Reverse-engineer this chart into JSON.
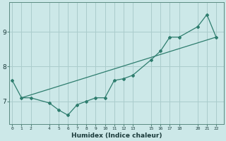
{
  "xlabel": "Humidex (Indice chaleur)",
  "ylabel": "",
  "bg_color": "#cce8e8",
  "line_color": "#2e7d6e",
  "grid_color": "#aacccc",
  "data_x": [
    0,
    1,
    2,
    4,
    5,
    6,
    7,
    8,
    9,
    10,
    11,
    12,
    13,
    15,
    16,
    17,
    18,
    20,
    21,
    22
  ],
  "data_y": [
    7.6,
    7.1,
    7.1,
    6.95,
    6.75,
    6.6,
    6.9,
    7.0,
    7.1,
    7.1,
    7.6,
    7.65,
    7.75,
    8.2,
    8.45,
    8.85,
    8.85,
    9.15,
    9.5,
    8.85
  ],
  "trend_x": [
    1,
    22
  ],
  "trend_y": [
    7.1,
    8.85
  ],
  "xticks": [
    0,
    1,
    2,
    4,
    5,
    6,
    7,
    8,
    9,
    10,
    11,
    12,
    13,
    15,
    16,
    17,
    18,
    20,
    21,
    22
  ],
  "yticks": [
    7,
    8,
    9
  ],
  "xlim": [
    -0.3,
    22.8
  ],
  "ylim": [
    6.35,
    9.85
  ]
}
